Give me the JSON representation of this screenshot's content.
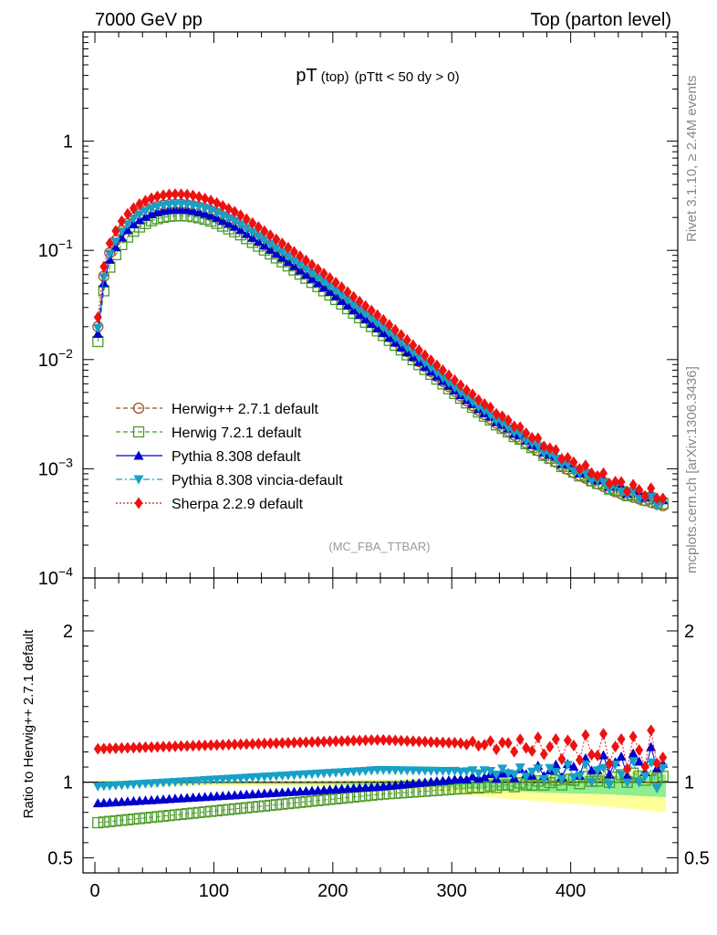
{
  "header": {
    "left": "7000 GeV pp",
    "right": "Top (parton level)"
  },
  "side_labels": {
    "rivet": "Rivet 3.1.10, ≥ 2.4M events",
    "mcplots": "mcplots.cern.ch [arXiv:1306.3436]"
  },
  "chart_data": [
    {
      "type": "line",
      "panel": "main",
      "title_main": "pT",
      "title_sub1": "(top)",
      "title_sub2": "(pTtt < 50 dy > 0)",
      "watermark": "(MC_FBA_TTBAR)",
      "yscale": "log",
      "ylim": [
        0.0001,
        10
      ],
      "xlim": [
        -10,
        490
      ],
      "yticks": [
        {
          "value": 1,
          "base": "1",
          "exp": ""
        },
        {
          "value": 0.1,
          "base": "10",
          "exp": "−1"
        },
        {
          "value": 0.01,
          "base": "10",
          "exp": "−2"
        },
        {
          "value": 0.001,
          "base": "10",
          "exp": "−3"
        },
        {
          "value": 0.0001,
          "base": "10",
          "exp": "−4"
        }
      ],
      "legend_position": "lower-left",
      "series": [
        {
          "name": "Herwig++ 2.7.1 default",
          "color": "#a0522d",
          "marker": "circle-open",
          "dash": "dashed",
          "shape_ref": 1.0,
          "ratio_shape": {
            "start": 1.0,
            "end": 1.0,
            "amp": 0
          }
        },
        {
          "name": "Herwig 7.2.1 default",
          "color": "#4c9a2a",
          "marker": "square-open",
          "dash": "dashed",
          "shape_ref": 0.82,
          "ratio_shape": {
            "start": 0.73,
            "mid": 0.92,
            "end": 1.05,
            "amp": 0.04
          }
        },
        {
          "name": "Pythia 8.308 default",
          "color": "#0000cc",
          "marker": "triangle-up",
          "dash": "solid",
          "shape_ref": 0.94,
          "ratio_shape": {
            "start": 0.86,
            "mid": 0.97,
            "end": 1.15,
            "amp": 0.1
          }
        },
        {
          "name": "Pythia 8.308 vincia-default",
          "color": "#17a0c8",
          "marker": "triangle-down",
          "dash": "dashdot",
          "shape_ref": 1.08,
          "ratio_shape": {
            "start": 0.97,
            "mid": 1.08,
            "end": 1.05,
            "amp": 0.1
          }
        },
        {
          "name": "Sherpa 2.2.9 default",
          "color": "#ee1111",
          "marker": "diamond",
          "dash": "dotted",
          "shape_ref": 1.3,
          "ratio_shape": {
            "start": 1.22,
            "mid": 1.28,
            "end": 1.2,
            "amp": 0.15
          }
        }
      ],
      "reference_curve": {
        "x": [
          2.5,
          7.5,
          12.5,
          20,
          30,
          40,
          50,
          60,
          70,
          80,
          90,
          100,
          120,
          140,
          160,
          180,
          200,
          220,
          240,
          260,
          280,
          300,
          320,
          340,
          360,
          380,
          400,
          420,
          440,
          460,
          477.5
        ],
        "y": [
          0.02,
          0.058,
          0.095,
          0.14,
          0.19,
          0.225,
          0.25,
          0.262,
          0.265,
          0.26,
          0.245,
          0.225,
          0.175,
          0.125,
          0.088,
          0.061,
          0.042,
          0.028,
          0.019,
          0.0125,
          0.0082,
          0.0054,
          0.0036,
          0.0025,
          0.0018,
          0.0013,
          0.00095,
          0.00075,
          0.0006,
          0.00052,
          0.00046
        ]
      }
    },
    {
      "type": "line",
      "panel": "ratio",
      "ylabel": "Ratio to Herwig++ 2.7.1 default",
      "ylim": [
        0.4,
        2.35
      ],
      "xlim": [
        -10,
        490
      ],
      "yticks": [
        0.5,
        1,
        2
      ],
      "ytick_labels": [
        "0.5",
        "1",
        "2"
      ],
      "xticks": [
        0,
        100,
        200,
        300,
        400
      ],
      "xtick_labels": [
        "0",
        "100",
        "200",
        "300",
        "400"
      ],
      "reference_line": 1,
      "band": {
        "color_outer": "#ffff99",
        "color_inner": "#90ee90"
      }
    }
  ]
}
